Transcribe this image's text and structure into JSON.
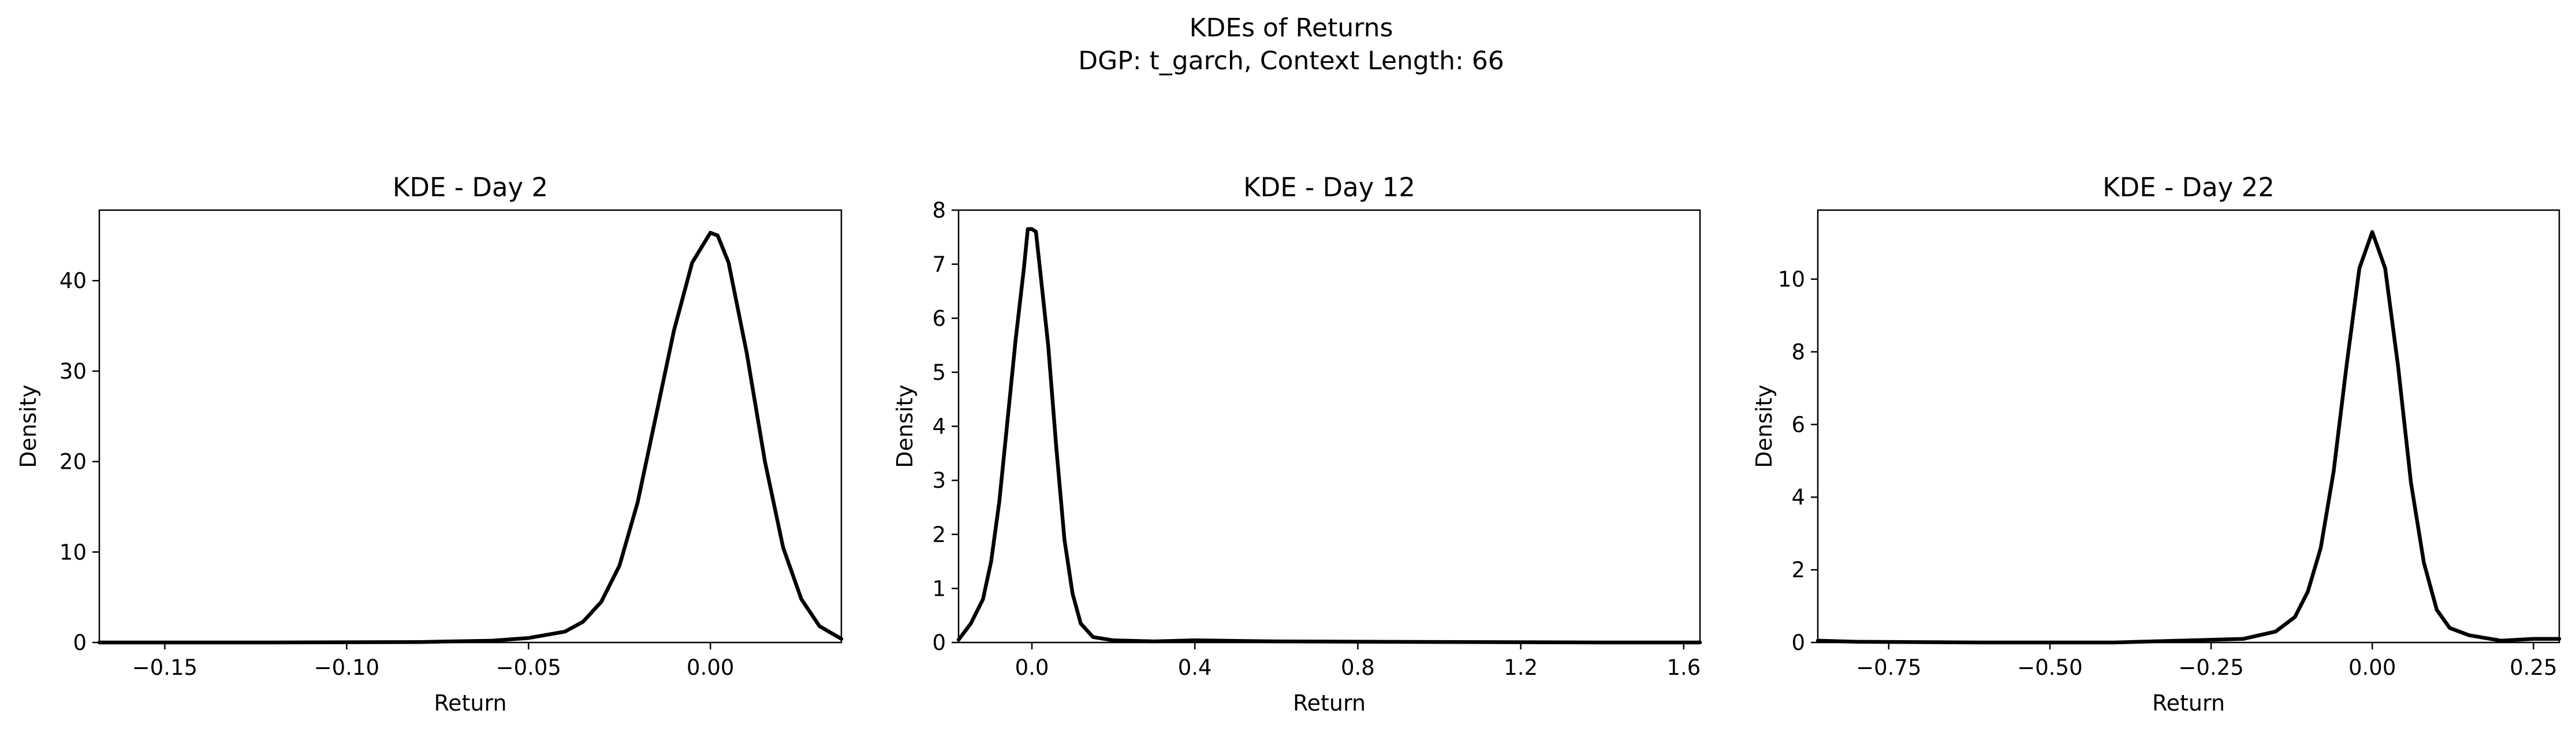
{
  "figure": {
    "suptitle_line1": "KDEs of Returns",
    "suptitle_line2": "DGP: t_garch, Context Length: 66"
  },
  "chart_data": [
    {
      "type": "line",
      "title": "KDE - Day 2",
      "xlabel": "Return",
      "ylabel": "Density",
      "xlim": [
        -0.168,
        0.036
      ],
      "ylim": [
        0,
        47.8
      ],
      "xticks": [
        -0.15,
        -0.1,
        -0.05,
        0.0
      ],
      "xtick_labels": [
        "−0.15",
        "−0.10",
        "−0.05",
        "0.00"
      ],
      "yticks": [
        0,
        10,
        20,
        30,
        40
      ],
      "ytick_labels": [
        "0",
        "10",
        "20",
        "30",
        "40"
      ],
      "grid": false,
      "series": [
        {
          "color": "#000000",
          "x": [
            -0.168,
            -0.12,
            -0.08,
            -0.06,
            -0.05,
            -0.04,
            -0.035,
            -0.03,
            -0.025,
            -0.02,
            -0.015,
            -0.01,
            -0.005,
            0.0,
            0.002,
            0.005,
            0.01,
            0.015,
            0.02,
            0.025,
            0.03,
            0.036
          ],
          "y": [
            0,
            0,
            0.05,
            0.2,
            0.5,
            1.2,
            2.3,
            4.5,
            8.5,
            15.5,
            25.0,
            34.5,
            42.0,
            45.3,
            45.0,
            42.0,
            32.0,
            20.0,
            10.5,
            4.8,
            1.8,
            0.4
          ]
        }
      ]
    },
    {
      "type": "line",
      "title": "KDE - Day 12",
      "xlabel": "Return",
      "ylabel": "Density",
      "xlim": [
        -0.18,
        1.64
      ],
      "ylim": [
        0,
        8.0
      ],
      "xticks": [
        0.0,
        0.4,
        0.8,
        1.2,
        1.6
      ],
      "xtick_labels": [
        "0.0",
        "0.4",
        "0.8",
        "1.2",
        "1.6"
      ],
      "yticks": [
        0,
        1,
        2,
        3,
        4,
        5,
        6,
        7,
        8
      ],
      "ytick_labels": [
        "0",
        "1",
        "2",
        "3",
        "4",
        "5",
        "6",
        "7",
        "8"
      ],
      "grid": false,
      "series": [
        {
          "color": "#000000",
          "x": [
            -0.18,
            -0.15,
            -0.12,
            -0.1,
            -0.08,
            -0.06,
            -0.04,
            -0.02,
            -0.01,
            0.0,
            0.01,
            0.02,
            0.04,
            0.06,
            0.08,
            0.1,
            0.12,
            0.15,
            0.2,
            0.3,
            0.4,
            0.6,
            1.0,
            1.4,
            1.64
          ],
          "y": [
            0.05,
            0.35,
            0.8,
            1.5,
            2.6,
            4.1,
            5.6,
            6.9,
            7.65,
            7.65,
            7.6,
            6.9,
            5.5,
            3.6,
            1.9,
            0.9,
            0.35,
            0.1,
            0.04,
            0.02,
            0.04,
            0.02,
            0.01,
            0.0,
            0.0
          ]
        }
      ]
    },
    {
      "type": "line",
      "title": "KDE - Day 22",
      "xlabel": "Return",
      "ylabel": "Density",
      "xlim": [
        -0.86,
        0.29
      ],
      "ylim": [
        0,
        11.9
      ],
      "xticks": [
        -0.75,
        -0.5,
        -0.25,
        0.0,
        0.25
      ],
      "xtick_labels": [
        "−0.75",
        "−0.50",
        "−0.25",
        "0.00",
        "0.25"
      ],
      "yticks": [
        0,
        2,
        4,
        6,
        8,
        10
      ],
      "ytick_labels": [
        "0",
        "2",
        "4",
        "6",
        "8",
        "10"
      ],
      "grid": false,
      "series": [
        {
          "color": "#000000",
          "x": [
            -0.86,
            -0.8,
            -0.6,
            -0.4,
            -0.3,
            -0.2,
            -0.15,
            -0.12,
            -0.1,
            -0.08,
            -0.06,
            -0.04,
            -0.02,
            0.0,
            0.02,
            0.04,
            0.06,
            0.08,
            0.1,
            0.12,
            0.15,
            0.2,
            0.25,
            0.29
          ],
          "y": [
            0.05,
            0.02,
            0.0,
            0.0,
            0.05,
            0.1,
            0.3,
            0.7,
            1.4,
            2.6,
            4.7,
            7.6,
            10.3,
            11.3,
            10.3,
            7.6,
            4.4,
            2.2,
            0.9,
            0.4,
            0.2,
            0.05,
            0.1,
            0.1
          ]
        }
      ]
    }
  ]
}
